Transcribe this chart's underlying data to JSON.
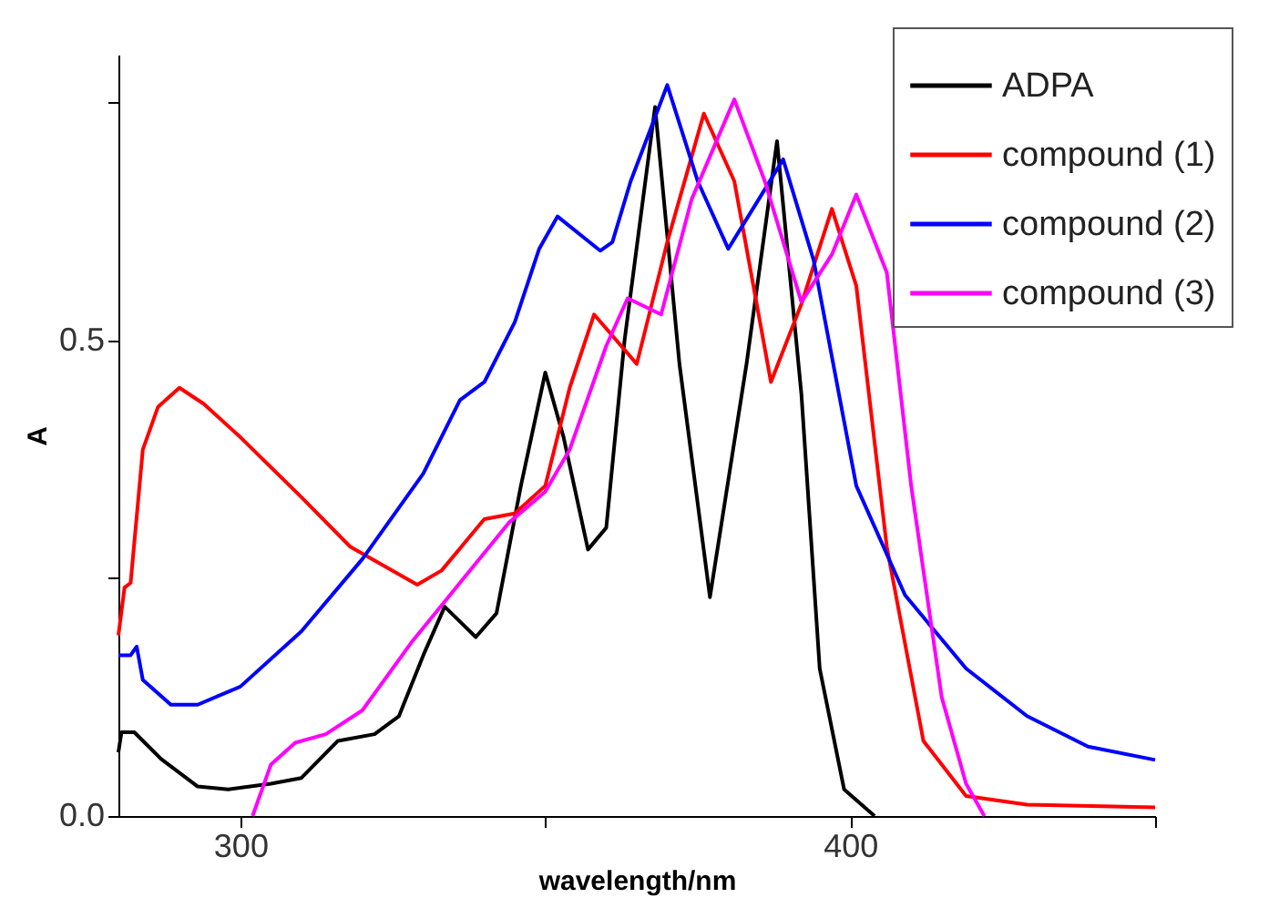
{
  "chart_data": {
    "type": "line",
    "xlabel": "wavelength/nm",
    "ylabel": "A",
    "xlim": [
      280,
      450
    ],
    "ylim": [
      0,
      0.8
    ],
    "xticks": [
      300,
      {
        "value": 350,
        "label": null
      },
      400,
      {
        "value": 450,
        "label": null
      }
    ],
    "yticks": [
      {
        "value": 0,
        "label": "0.0"
      },
      {
        "value": 0.25,
        "label": null
      },
      0.5,
      {
        "value": 0.75,
        "label": null
      }
    ],
    "legend": "top right",
    "grid": false,
    "marker": "none",
    "line_style": "solid",
    "series": [
      {
        "name": "ADPA",
        "color": "#000000",
        "x": [
          280,
          280.5,
          282.6,
          287,
          293,
          298,
          305,
          310,
          316,
          322,
          326,
          330,
          333.5,
          338.6,
          342,
          346,
          350,
          353,
          357,
          360,
          363,
          368,
          372,
          377,
          383,
          388,
          392,
          395,
          399,
          404
        ],
        "values": [
          0.067,
          0.088,
          0.088,
          0.06,
          0.031,
          0.028,
          0.034,
          0.04,
          0.079,
          0.086,
          0.105,
          0.169,
          0.22,
          0.188,
          0.213,
          0.347,
          0.466,
          0.398,
          0.28,
          0.303,
          0.5,
          0.745,
          0.475,
          0.23,
          0.475,
          0.709,
          0.443,
          0.155,
          0.028,
          0
        ]
      },
      {
        "name": "compound (1)",
        "color": "#ff0000",
        "x": [
          280,
          281,
          282,
          284,
          286.5,
          290,
          294,
          300,
          310,
          318,
          329,
          333,
          340,
          345,
          350,
          354,
          358,
          365,
          370,
          376,
          381,
          387,
          392,
          397,
          401,
          406,
          412,
          419,
          429,
          450
        ],
        "values": [
          0.19,
          0.24,
          0.245,
          0.385,
          0.43,
          0.45,
          0.433,
          0.398,
          0.335,
          0.283,
          0.243,
          0.258,
          0.312,
          0.318,
          0.347,
          0.45,
          0.527,
          0.475,
          0.603,
          0.738,
          0.667,
          0.456,
          0.538,
          0.638,
          0.557,
          0.283,
          0.079,
          0.021,
          0.012,
          0.009
        ]
      },
      {
        "name": "compound (2)",
        "color": "#0000ff",
        "x": [
          280,
          282,
          283,
          284,
          288.6,
          293,
          300,
          310,
          320,
          330,
          336,
          340,
          345,
          349,
          352,
          359,
          361,
          364,
          370,
          375,
          380,
          385,
          389,
          394,
          401,
          409,
          419,
          429,
          439,
          450
        ],
        "values": [
          0.169,
          0.169,
          0.178,
          0.143,
          0.117,
          0.117,
          0.136,
          0.194,
          0.27,
          0.36,
          0.437,
          0.456,
          0.519,
          0.596,
          0.63,
          0.594,
          0.603,
          0.667,
          0.768,
          0.667,
          0.596,
          0.648,
          0.69,
          0.584,
          0.347,
          0.232,
          0.155,
          0.105,
          0.073,
          0.059
        ]
      },
      {
        "name": "compound (3)",
        "color": "#ff00ff",
        "x": [
          302,
          305,
          309,
          314,
          320,
          328,
          336,
          344,
          350,
          354,
          360,
          363.5,
          369,
          374,
          381,
          386,
          392,
          397,
          401,
          406,
          410,
          415,
          419,
          422
        ],
        "values": [
          0,
          0.054,
          0.077,
          0.086,
          0.111,
          0.182,
          0.245,
          0.308,
          0.341,
          0.385,
          0.494,
          0.544,
          0.527,
          0.648,
          0.753,
          0.667,
          0.54,
          0.59,
          0.653,
          0.571,
          0.347,
          0.125,
          0.034,
          0
        ]
      }
    ]
  }
}
